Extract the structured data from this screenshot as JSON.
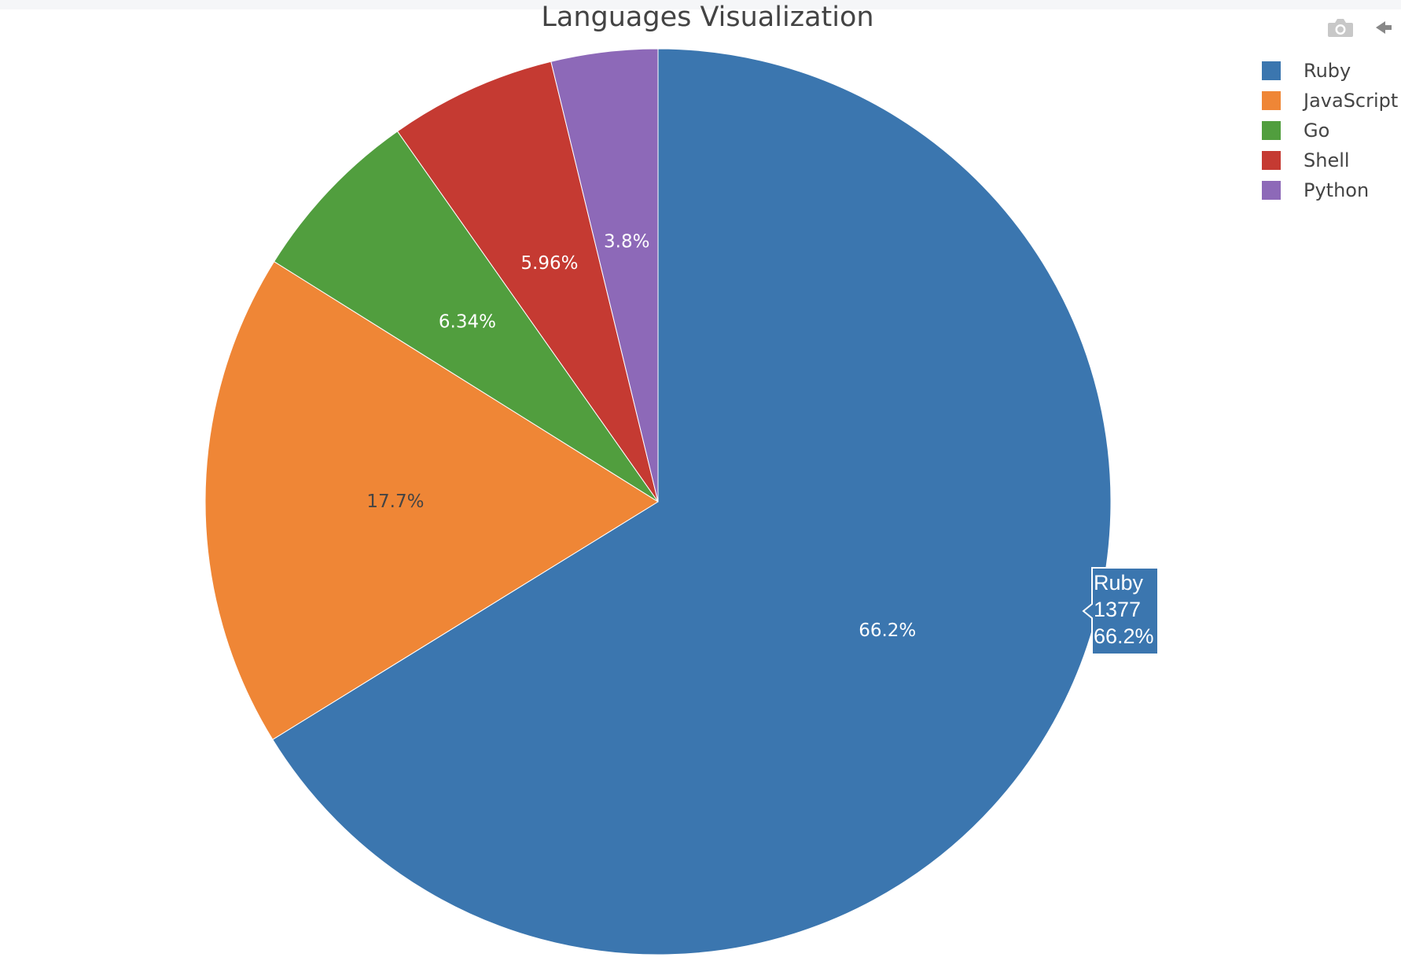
{
  "chart_data": {
    "type": "pie",
    "title": "Languages Visualization",
    "slices": [
      {
        "label": "Ruby",
        "value": 1377,
        "percent_text": "66.2%",
        "color": "#3b76af",
        "text_color": "#ffffff"
      },
      {
        "label": "JavaScript",
        "value": 368,
        "percent_text": "17.7%",
        "color": "#ef8636",
        "text_color": "#444444"
      },
      {
        "label": "Go",
        "value": 132,
        "percent_text": "6.34%",
        "color": "#519e3e",
        "text_color": "#ffffff"
      },
      {
        "label": "Shell",
        "value": 124,
        "percent_text": "5.96%",
        "color": "#c53a32",
        "text_color": "#ffffff"
      },
      {
        "label": "Python",
        "value": 79,
        "percent_text": "3.8%",
        "color": "#8d69b8",
        "text_color": "#ffffff"
      }
    ],
    "direction": "clockwise",
    "start": "top",
    "legend_position": "top-right",
    "hover": {
      "label": "Ruby",
      "value": "1377",
      "percent": "66.2%"
    }
  },
  "modebar": {
    "icons": [
      "camera-icon",
      "pan-icon"
    ]
  }
}
